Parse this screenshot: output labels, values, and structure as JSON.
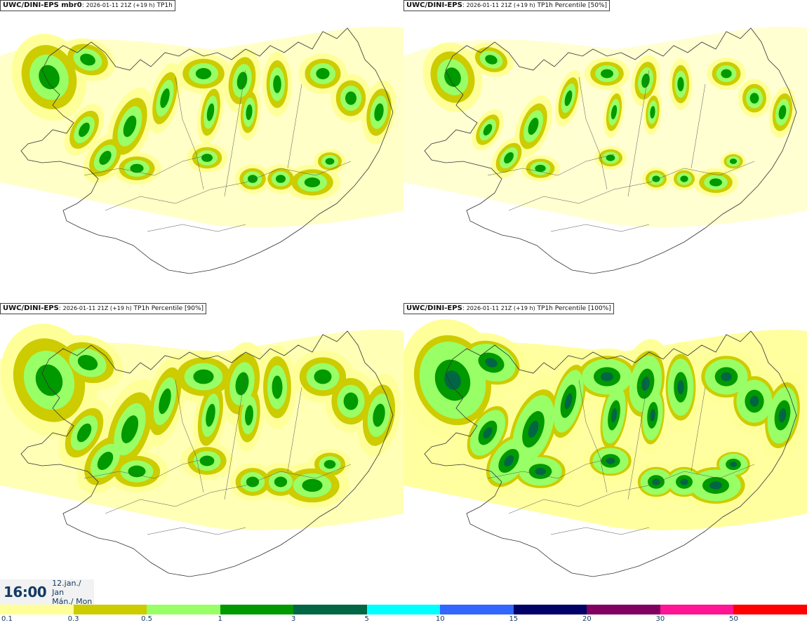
{
  "panels": [
    {
      "model": "UWC/DINI-EPS",
      "suffix": " mbr0",
      "run": "2026-01-11 21Z (+19 h)",
      "product": "TP1h",
      "intensity": 1
    },
    {
      "model": "UWC/DINI-EPS",
      "suffix": "",
      "run": "2026-01-11 21Z (+19 h)",
      "product": "TP1h Percentile [50%]",
      "intensity": 0.8
    },
    {
      "model": "UWC/DINI-EPS",
      "suffix": "",
      "run": "2026-01-11 21Z (+19 h)",
      "product": "TP1h Percentile [90%]",
      "intensity": 1.3
    },
    {
      "model": "UWC/DINI-EPS",
      "suffix": "",
      "run": "2026-01-11 21Z (+19 h)",
      "product": "TP1h Percentile [100%]",
      "intensity": 1.7
    }
  ],
  "valid_time": {
    "clock": "16:00",
    "date_line1": "12.jan./ Jan",
    "date_line2": "Mán./ Mon"
  },
  "legend": {
    "levels": [
      {
        "label": "0.1",
        "color": "#ffff99"
      },
      {
        "label": "0.3",
        "color": "#cccc00"
      },
      {
        "label": "0.5",
        "color": "#99ff66"
      },
      {
        "label": "1",
        "color": "#009900"
      },
      {
        "label": "3",
        "color": "#006644"
      },
      {
        "label": "5",
        "color": "#00ffff"
      },
      {
        "label": "10",
        "color": "#3366ff"
      },
      {
        "label": "15",
        "color": "#000066"
      },
      {
        "label": "20",
        "color": "#800060"
      },
      {
        "label": "30",
        "color": "#ff1493"
      },
      {
        "label": "50",
        "color": "#ff0000"
      }
    ]
  }
}
